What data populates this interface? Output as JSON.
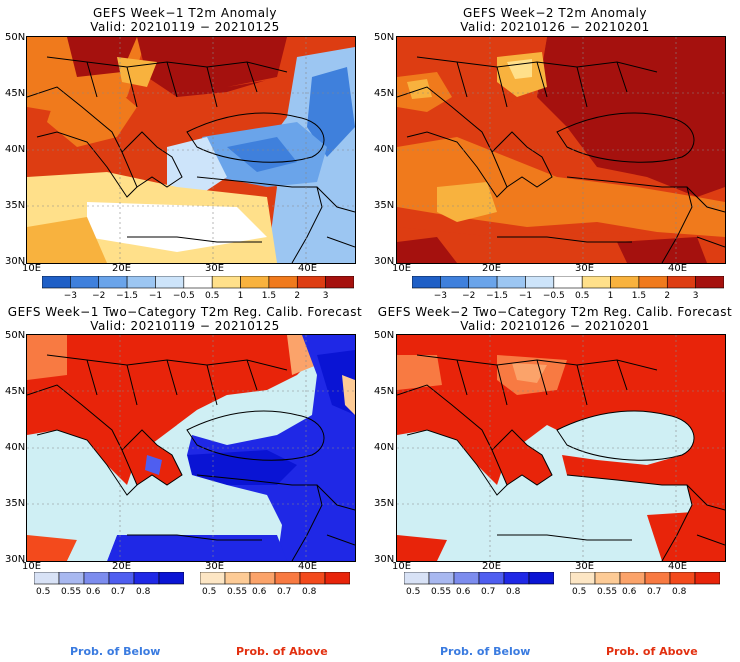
{
  "panels": [
    {
      "title": "GEFS Week−1 T2m Anomaly",
      "valid": "Valid: 20210119 − 20210125"
    },
    {
      "title": "GEFS Week−2 T2m Anomaly",
      "valid": "Valid: 20210126 − 20210201"
    },
    {
      "title": "GEFS Week−1 Two−Category T2m Reg. Calib. Forecast",
      "valid": "Valid: 20210119 − 20210125"
    },
    {
      "title": "GEFS Week−2 Two−Category T2m Reg. Calib. Forecast",
      "valid": "Valid: 20210126 − 20210201"
    }
  ],
  "lat_labels": [
    "50N",
    "45N",
    "40N",
    "35N",
    "30N"
  ],
  "lon_labels": [
    "10E",
    "20E",
    "30E",
    "40E"
  ],
  "anomaly_colorbar": {
    "labels": [
      "−3",
      "−2",
      "−1.5",
      "−1",
      "−0.5",
      "0.5",
      "1",
      "1.5",
      "2",
      "3"
    ],
    "colors": [
      "#1f5fc6",
      "#3f80dc",
      "#6aa4ea",
      "#9cc6f2",
      "#cde4fa",
      "#ffffff",
      "#ffe08a",
      "#f8b23e",
      "#f07a1c",
      "#dd3d12",
      "#a5110e"
    ]
  },
  "below_colorbar": {
    "labels": [
      "0.5",
      "0.55",
      "0.6",
      "0.7",
      "0.8"
    ],
    "colors": [
      "#d8e2f6",
      "#a8b8f0",
      "#7c8cee",
      "#4f5ef0",
      "#1f28e6",
      "#0a14d4"
    ]
  },
  "above_colorbar": {
    "labels": [
      "0.5",
      "0.55",
      "0.6",
      "0.7",
      "0.8"
    ],
    "colors": [
      "#fde6c4",
      "#fdcb96",
      "#fba36a",
      "#f87a42",
      "#f34a1c",
      "#e8240a"
    ]
  },
  "footer": {
    "below": "Prob. of Below",
    "above": "Prob. of Above"
  },
  "colors": {
    "sea_light": "#cfeff4",
    "land_hot": "#e23b12",
    "below_text": "#3a7be0",
    "above_text": "#e23010"
  }
}
